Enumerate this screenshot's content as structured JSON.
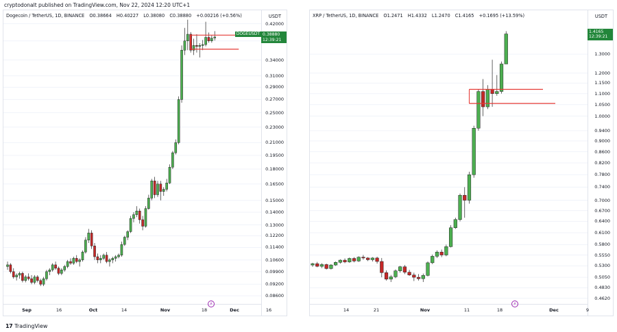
{
  "header": {
    "text": "cryptodonalt published on TradingView.com, Nov 22, 2024 12:20 UTC+1"
  },
  "footer": {
    "logo_glyph": "17",
    "label": "TradingView"
  },
  "colors": {
    "up": "#4caf50",
    "down": "#c62828",
    "level": "#e53935",
    "grid": "#f0f3fa",
    "tag": "#22863a",
    "flash": "#9c27b0"
  },
  "charts": [
    {
      "symbol": "Dogecoin / TetherUS, 1D, BINANCE",
      "ohlc": {
        "o": "O0.38664",
        "h": "H0.40227",
        "l": "L0.38080",
        "c": "C0.38880",
        "chg": "+0.00216 (+0.56%)"
      },
      "axis_unit": "USDT",
      "price_tag": {
        "price": "0.38880",
        "time": "12:39:21",
        "symbol_label": "DOGEUSDT"
      },
      "flash_glyph": "⚡",
      "y_ticks": [
        "0.42000",
        "0.38000",
        "0.34000",
        "0.31000",
        "0.29000",
        "0.27000",
        "0.25000",
        "0.23000",
        "0.21000",
        "0.19500",
        "0.18000",
        "0.16500",
        "0.15000",
        "0.14000",
        "0.13000",
        "0.12200",
        "0.11400",
        "0.10600",
        "0.09900",
        "0.09200",
        "0.08600"
      ],
      "x_ticks": [
        {
          "label": "Sep",
          "bold": true
        },
        {
          "label": "16",
          "bold": false
        },
        {
          "label": "Oct",
          "bold": true
        },
        {
          "label": "14",
          "bold": false
        },
        {
          "label": "Nov",
          "bold": true
        },
        {
          "label": "18",
          "bold": false
        },
        {
          "label": "Dec",
          "bold": true
        },
        {
          "label": "16",
          "bold": false
        }
      ]
    },
    {
      "symbol": "XRP / TetherUS, 1D, BINANCE",
      "ohlc": {
        "o": "O1.2471",
        "h": "H1.4332",
        "l": "L1.2470",
        "c": "C1.4165",
        "chg": "+0.1695 (+13.59%)"
      },
      "axis_unit": "USDT",
      "price_tag": {
        "price": "1.4165",
        "time": "12:39:21",
        "symbol_label": ""
      },
      "flash_glyph": "⚡",
      "y_ticks": [
        "1.3000",
        "1.2000",
        "1.1500",
        "1.1000",
        "1.0500",
        "1.0000",
        "0.9400",
        "0.9000",
        "0.8600",
        "0.8200",
        "0.7800",
        "0.7400",
        "0.7000",
        "0.6700",
        "0.6400",
        "0.6100",
        "0.5800",
        "0.5550",
        "0.5300",
        "0.5050",
        "0.4830",
        "0.4620"
      ],
      "x_ticks": [
        {
          "label": "14",
          "bold": false
        },
        {
          "label": "21",
          "bold": false
        },
        {
          "label": "Nov",
          "bold": true
        },
        {
          "label": "11",
          "bold": false
        },
        {
          "label": "18",
          "bold": false
        },
        {
          "label": "Dec",
          "bold": true
        },
        {
          "label": "9",
          "bold": false
        }
      ]
    }
  ],
  "chart_data": [
    {
      "type": "candlestick",
      "title": "Dogecoin / TetherUS, 1D, BINANCE",
      "ylabel": "USDT",
      "y_scale": "log",
      "ylim": [
        0.083,
        0.44
      ],
      "x_start": "2024-08-30",
      "x_ticks": [
        "Sep",
        "16",
        "Oct",
        "14",
        "Nov",
        "18",
        "Dec",
        "16"
      ],
      "candles": [
        [
          0.102,
          0.105,
          0.1,
          0.103
        ],
        [
          0.103,
          0.104,
          0.098,
          0.099
        ],
        [
          0.099,
          0.101,
          0.095,
          0.096
        ],
        [
          0.096,
          0.098,
          0.094,
          0.097
        ],
        [
          0.097,
          0.099,
          0.095,
          0.098
        ],
        [
          0.098,
          0.099,
          0.093,
          0.094
        ],
        [
          0.094,
          0.097,
          0.093,
          0.096
        ],
        [
          0.096,
          0.098,
          0.094,
          0.095
        ],
        [
          0.095,
          0.097,
          0.092,
          0.093
        ],
        [
          0.093,
          0.097,
          0.092,
          0.096
        ],
        [
          0.096,
          0.097,
          0.093,
          0.094
        ],
        [
          0.094,
          0.095,
          0.091,
          0.092
        ],
        [
          0.092,
          0.096,
          0.091,
          0.095
        ],
        [
          0.095,
          0.1,
          0.094,
          0.099
        ],
        [
          0.099,
          0.101,
          0.097,
          0.1
        ],
        [
          0.1,
          0.104,
          0.099,
          0.103
        ],
        [
          0.103,
          0.105,
          0.1,
          0.101
        ],
        [
          0.101,
          0.102,
          0.097,
          0.098
        ],
        [
          0.098,
          0.101,
          0.097,
          0.1
        ],
        [
          0.1,
          0.103,
          0.099,
          0.102
        ],
        [
          0.102,
          0.106,
          0.101,
          0.105
        ],
        [
          0.105,
          0.107,
          0.103,
          0.104
        ],
        [
          0.104,
          0.108,
          0.103,
          0.107
        ],
        [
          0.107,
          0.109,
          0.104,
          0.105
        ],
        [
          0.105,
          0.107,
          0.102,
          0.106
        ],
        [
          0.106,
          0.112,
          0.105,
          0.111
        ],
        [
          0.111,
          0.121,
          0.11,
          0.119
        ],
        [
          0.119,
          0.127,
          0.117,
          0.124
        ],
        [
          0.124,
          0.126,
          0.113,
          0.115
        ],
        [
          0.115,
          0.117,
          0.106,
          0.108
        ],
        [
          0.108,
          0.11,
          0.104,
          0.106
        ],
        [
          0.106,
          0.109,
          0.104,
          0.107
        ],
        [
          0.107,
          0.11,
          0.106,
          0.109
        ],
        [
          0.109,
          0.111,
          0.104,
          0.105
        ],
        [
          0.105,
          0.107,
          0.102,
          0.106
        ],
        [
          0.106,
          0.108,
          0.104,
          0.107
        ],
        [
          0.107,
          0.109,
          0.105,
          0.108
        ],
        [
          0.108,
          0.11,
          0.107,
          0.109
        ],
        [
          0.109,
          0.118,
          0.108,
          0.116
        ],
        [
          0.116,
          0.122,
          0.115,
          0.121
        ],
        [
          0.121,
          0.126,
          0.119,
          0.125
        ],
        [
          0.125,
          0.137,
          0.124,
          0.135
        ],
        [
          0.135,
          0.14,
          0.132,
          0.138
        ],
        [
          0.138,
          0.145,
          0.136,
          0.141
        ],
        [
          0.141,
          0.143,
          0.131,
          0.134
        ],
        [
          0.134,
          0.137,
          0.126,
          0.129
        ],
        [
          0.129,
          0.145,
          0.128,
          0.143
        ],
        [
          0.143,
          0.155,
          0.142,
          0.152
        ],
        [
          0.152,
          0.17,
          0.15,
          0.168
        ],
        [
          0.168,
          0.172,
          0.152,
          0.155
        ],
        [
          0.155,
          0.168,
          0.153,
          0.165
        ],
        [
          0.165,
          0.168,
          0.15,
          0.158
        ],
        [
          0.158,
          0.162,
          0.154,
          0.16
        ],
        [
          0.16,
          0.17,
          0.158,
          0.166
        ],
        [
          0.166,
          0.185,
          0.165,
          0.182
        ],
        [
          0.182,
          0.2,
          0.18,
          0.198
        ],
        [
          0.198,
          0.214,
          0.196,
          0.21
        ],
        [
          0.21,
          0.275,
          0.208,
          0.27
        ],
        [
          0.27,
          0.37,
          0.265,
          0.36
        ],
        [
          0.36,
          0.41,
          0.35,
          0.38
        ],
        [
          0.38,
          0.43,
          0.36,
          0.395
        ],
        [
          0.395,
          0.4,
          0.355,
          0.36
        ],
        [
          0.36,
          0.385,
          0.35,
          0.37
        ],
        [
          0.37,
          0.395,
          0.355,
          0.368
        ],
        [
          0.368,
          0.375,
          0.345,
          0.37
        ],
        [
          0.37,
          0.382,
          0.36,
          0.372
        ],
        [
          0.372,
          0.425,
          0.368,
          0.388
        ],
        [
          0.388,
          0.399,
          0.376,
          0.38
        ],
        [
          0.38,
          0.392,
          0.376,
          0.386
        ],
        [
          0.3866,
          0.40227,
          0.3808,
          0.3888
        ]
      ],
      "levels": [
        0.393,
        0.362
      ]
    },
    {
      "type": "candlestick",
      "title": "XRP / TetherUS, 1D, BINANCE",
      "ylabel": "USDT",
      "y_scale": "log",
      "ylim": [
        0.455,
        1.53
      ],
      "x_start": "2024-10-06",
      "x_ticks": [
        "14",
        "21",
        "Nov",
        "11",
        "18",
        "Dec",
        "9"
      ],
      "candles": [
        [
          0.532,
          0.537,
          0.528,
          0.535
        ],
        [
          0.535,
          0.539,
          0.527,
          0.529
        ],
        [
          0.529,
          0.536,
          0.525,
          0.533
        ],
        [
          0.533,
          0.535,
          0.522,
          0.524
        ],
        [
          0.524,
          0.534,
          0.522,
          0.532
        ],
        [
          0.532,
          0.54,
          0.53,
          0.538
        ],
        [
          0.538,
          0.545,
          0.535,
          0.543
        ],
        [
          0.543,
          0.547,
          0.536,
          0.539
        ],
        [
          0.539,
          0.549,
          0.537,
          0.547
        ],
        [
          0.547,
          0.55,
          0.538,
          0.541
        ],
        [
          0.541,
          0.552,
          0.539,
          0.55
        ],
        [
          0.55,
          0.555,
          0.544,
          0.548
        ],
        [
          0.548,
          0.55,
          0.541,
          0.544
        ],
        [
          0.544,
          0.55,
          0.54,
          0.548
        ],
        [
          0.548,
          0.551,
          0.535,
          0.54
        ],
        [
          0.54,
          0.548,
          0.505,
          0.515
        ],
        [
          0.515,
          0.52,
          0.498,
          0.501
        ],
        [
          0.501,
          0.51,
          0.495,
          0.506
        ],
        [
          0.506,
          0.522,
          0.503,
          0.519
        ],
        [
          0.519,
          0.53,
          0.515,
          0.528
        ],
        [
          0.528,
          0.532,
          0.512,
          0.516
        ],
        [
          0.516,
          0.521,
          0.508,
          0.51
        ],
        [
          0.51,
          0.515,
          0.497,
          0.505
        ],
        [
          0.505,
          0.512,
          0.498,
          0.502
        ],
        [
          0.502,
          0.513,
          0.495,
          0.509
        ],
        [
          0.509,
          0.54,
          0.507,
          0.537
        ],
        [
          0.537,
          0.556,
          0.534,
          0.552
        ],
        [
          0.552,
          0.566,
          0.548,
          0.562
        ],
        [
          0.562,
          0.568,
          0.55,
          0.555
        ],
        [
          0.555,
          0.58,
          0.552,
          0.575
        ],
        [
          0.575,
          0.63,
          0.573,
          0.623
        ],
        [
          0.623,
          0.65,
          0.62,
          0.645
        ],
        [
          0.645,
          0.72,
          0.64,
          0.715
        ],
        [
          0.715,
          0.74,
          0.65,
          0.7
        ],
        [
          0.7,
          0.79,
          0.69,
          0.78
        ],
        [
          0.78,
          0.96,
          0.77,
          0.95
        ],
        [
          0.95,
          1.12,
          0.94,
          1.11
        ],
        [
          1.11,
          1.17,
          1.0,
          1.04
        ],
        [
          1.04,
          1.14,
          1.03,
          1.12
        ],
        [
          1.12,
          1.27,
          1.04,
          1.1
        ],
        [
          1.1,
          1.19,
          1.09,
          1.11
        ],
        [
          1.11,
          1.26,
          1.1,
          1.247
        ],
        [
          1.2471,
          1.4332,
          1.247,
          1.4165
        ]
      ],
      "levels": [
        1.12,
        1.055
      ]
    }
  ]
}
